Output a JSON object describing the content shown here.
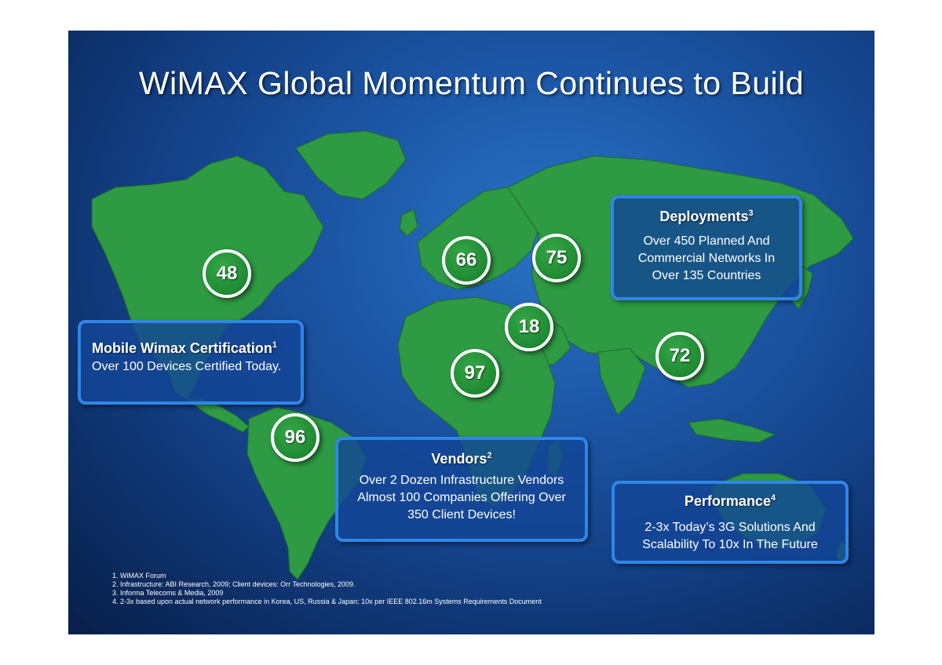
{
  "title": "WiMAX Global Momentum Continues to Build",
  "badges": [
    "48",
    "66",
    "75",
    "18",
    "97",
    "72",
    "96"
  ],
  "boxes": {
    "deployments": {
      "heading": "Deployments",
      "sup": "3",
      "lines": [
        "Over 450 Planned And",
        "Commercial Networks In",
        "Over 135 Countries"
      ]
    },
    "certification": {
      "heading": "Mobile Wimax Certification",
      "sup": "1",
      "lines": [
        "Over 100 Devices Certified Today."
      ]
    },
    "vendors": {
      "heading": "Vendors",
      "sup": "2",
      "lines": [
        "Over 2 Dozen Infrastructure Vendors",
        "Almost 100 Companies Offering Over",
        "350 Client Devices!"
      ]
    },
    "performance": {
      "heading": "Performance",
      "sup": "4",
      "lines": [
        "2-3x Today’s 3G Solutions And",
        "Scalability To 10x In The Future"
      ]
    }
  },
  "footnotes": [
    "1.  WiMAX Forum",
    "2.  Infrastructure:  ABI Research, 2009; Client devices:  Orr Technologies, 2009.",
    "3.  Informa Telecoms & Media, 2009",
    "4.  2-3x based upon actual network performance in Korea, US, Russia & Japan; 10x per IEEE  802.16m Systems Requirements Document"
  ],
  "colors": {
    "background": "#1d58a8",
    "land": "#2e9a43",
    "box_border": "#2f86e8",
    "badge": "#1f8a33"
  }
}
